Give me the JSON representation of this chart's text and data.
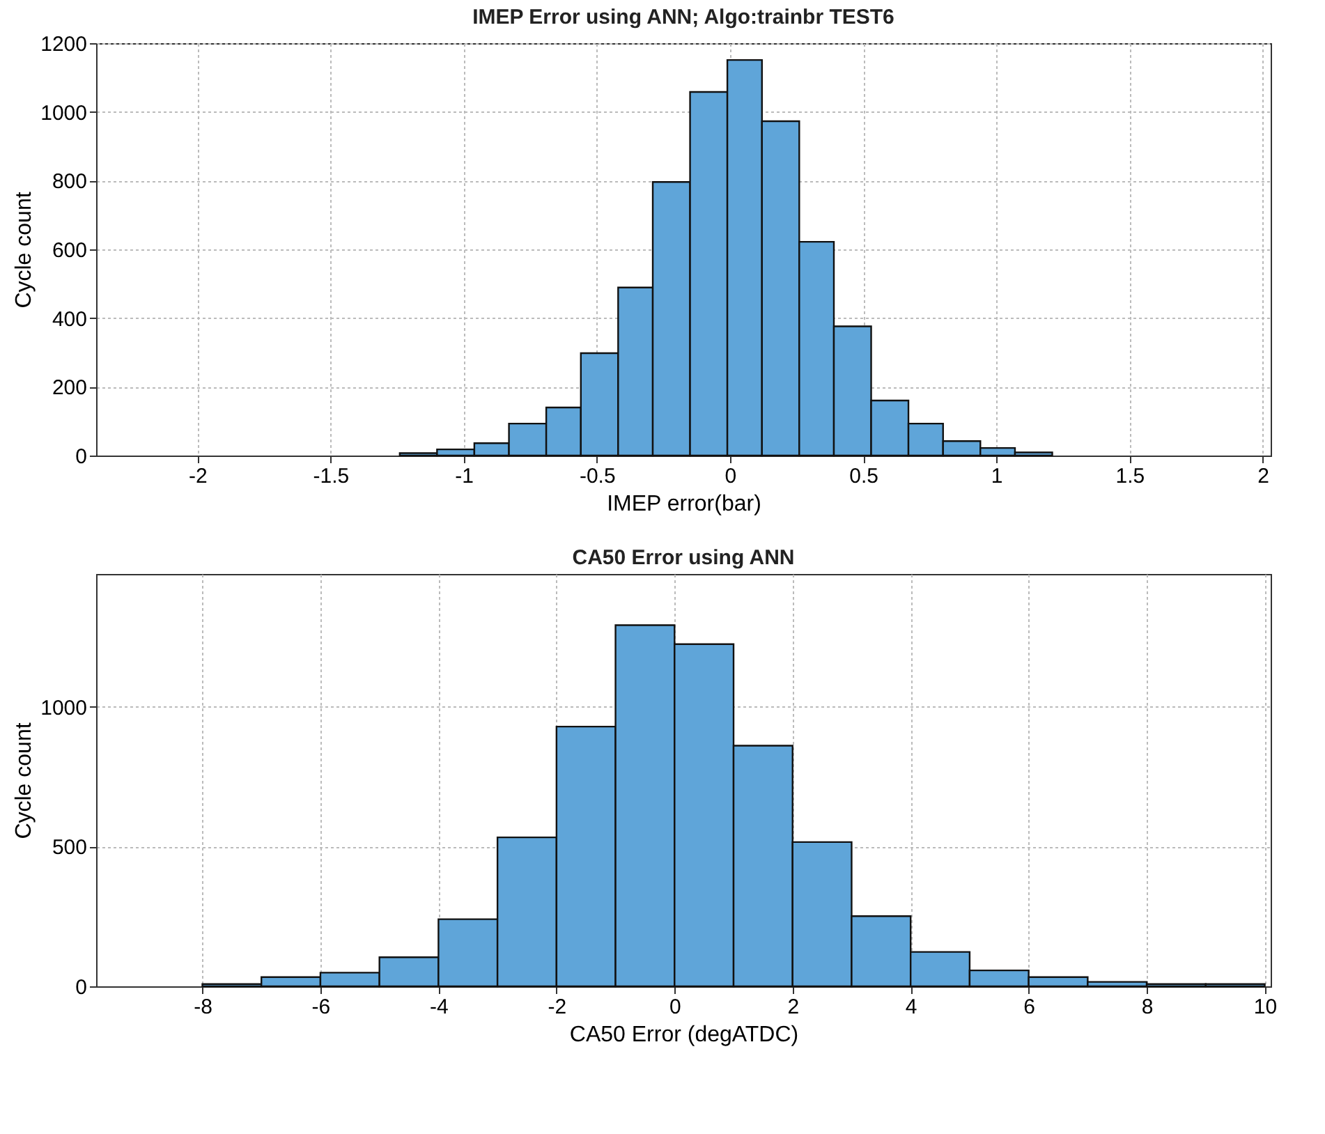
{
  "chart_data": [
    {
      "type": "histogram",
      "title": "IMEP Error using ANN; Algo:trainbr TEST6",
      "xlabel": "IMEP error(bar)",
      "ylabel": "Cycle count",
      "color": "#5fa5d9",
      "bins": [
        -1.24,
        -1.1,
        -0.96,
        -0.83,
        -0.69,
        -0.56,
        -0.42,
        -0.29,
        -0.15,
        -0.01,
        0.12,
        0.26,
        0.39,
        0.53,
        0.67,
        0.8,
        0.94,
        1.07,
        1.21
      ],
      "values": [
        7,
        18,
        36,
        93,
        140,
        298,
        489,
        796,
        1058,
        1151,
        973,
        622,
        376,
        160,
        93,
        42,
        22,
        9
      ],
      "xlim": [
        -2.38,
        2.03
      ],
      "xticks": [
        -2,
        -1.5,
        -1,
        -0.5,
        0,
        0.5,
        1,
        1.5,
        2
      ],
      "ylim": [
        0,
        1200
      ],
      "yticks": [
        0,
        200,
        400,
        600,
        800,
        1000,
        1200
      ],
      "grid": true
    },
    {
      "type": "histogram",
      "title": "CA50 Error using ANN",
      "xlabel": "CA50 Error (degATDC)",
      "ylabel": "Cycle count",
      "color": "#5fa5d9",
      "bins": [
        -8,
        -7,
        -6,
        -5,
        -4,
        -3,
        -2,
        -1,
        0,
        1,
        2,
        3,
        4,
        5,
        6,
        7,
        8,
        9,
        10
      ],
      "values": [
        8,
        33,
        49,
        104,
        240,
        533,
        929,
        1292,
        1224,
        861,
        516,
        251,
        123,
        57,
        33,
        16,
        8,
        8
      ],
      "xlim": [
        -9.8,
        10.1
      ],
      "xticks": [
        -8,
        -6,
        -4,
        -2,
        0,
        2,
        4,
        6,
        8,
        10
      ],
      "ylim": [
        0,
        1475
      ],
      "yticks": [
        0,
        500,
        1000
      ],
      "grid": true
    }
  ]
}
